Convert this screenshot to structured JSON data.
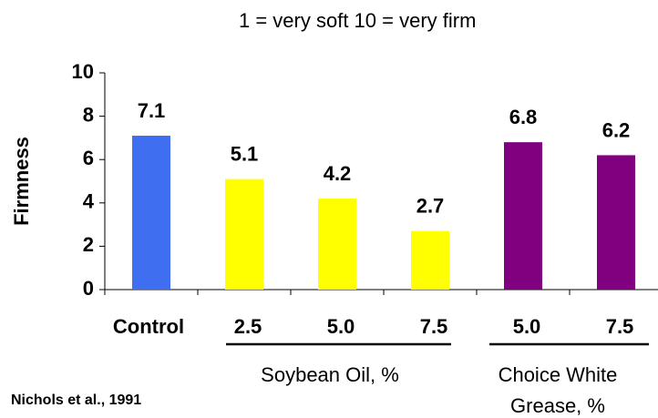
{
  "chart_data": {
    "type": "bar",
    "subtitle": "1 = very soft  10 = very firm",
    "ylabel": "Firmness",
    "categories": [
      "Control",
      "2.5",
      "5.0",
      "7.5",
      "5.0",
      "7.5"
    ],
    "values": [
      7.1,
      5.1,
      4.2,
      2.7,
      6.8,
      6.2
    ],
    "colors": [
      "#3f6ff0",
      "#ffff00",
      "#ffff00",
      "#ffff00",
      "#800080",
      "#800080"
    ],
    "groups": [
      {
        "label": [
          "Soybean Oil, %"
        ]
      },
      {
        "label": [
          "Choice White",
          "Grease, %"
        ]
      }
    ],
    "source": "Nichols et al., 1991",
    "ylim": [
      0,
      10
    ],
    "yticks": [
      0,
      2,
      4,
      6,
      8,
      10
    ]
  }
}
